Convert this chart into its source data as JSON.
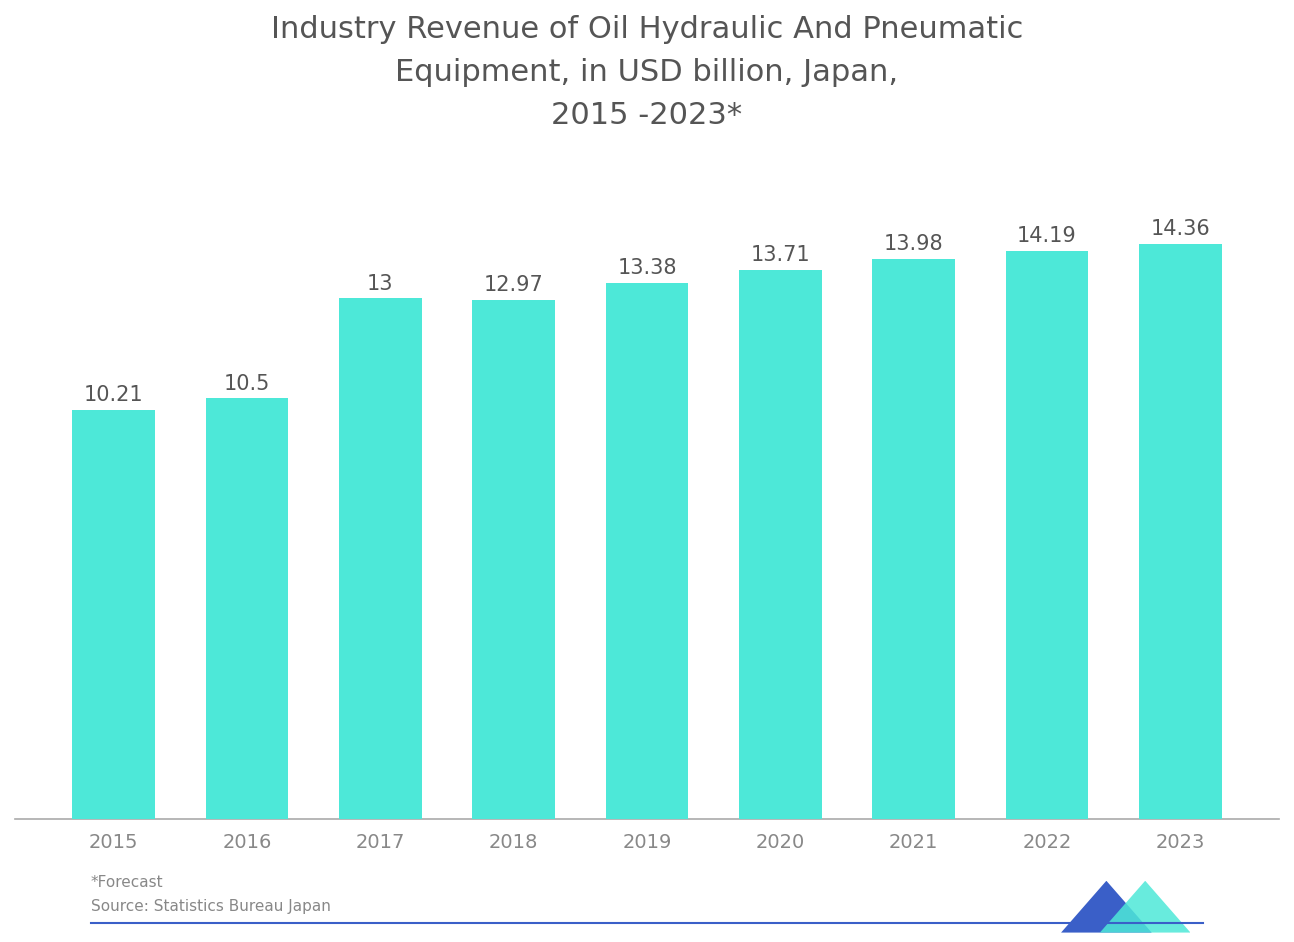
{
  "title": "Industry Revenue of Oil Hydraulic And Pneumatic\nEquipment, in USD billion, Japan,\n2015 -2023*",
  "years": [
    "2015",
    "2016",
    "2017",
    "2018",
    "2019",
    "2020",
    "2021",
    "2022",
    "2023"
  ],
  "values": [
    10.21,
    10.5,
    13.0,
    12.97,
    13.38,
    13.71,
    13.98,
    14.19,
    14.36
  ],
  "bar_color": "#4DE8D8",
  "background_color": "#ffffff",
  "title_color": "#555555",
  "label_color": "#555555",
  "tick_color": "#888888",
  "footer_forecast": "*Forecast",
  "footer_source": "Source: Statistics Bureau Japan",
  "ylim": [
    0,
    16.5
  ],
  "title_fontsize": 22,
  "label_fontsize": 15,
  "tick_fontsize": 14
}
